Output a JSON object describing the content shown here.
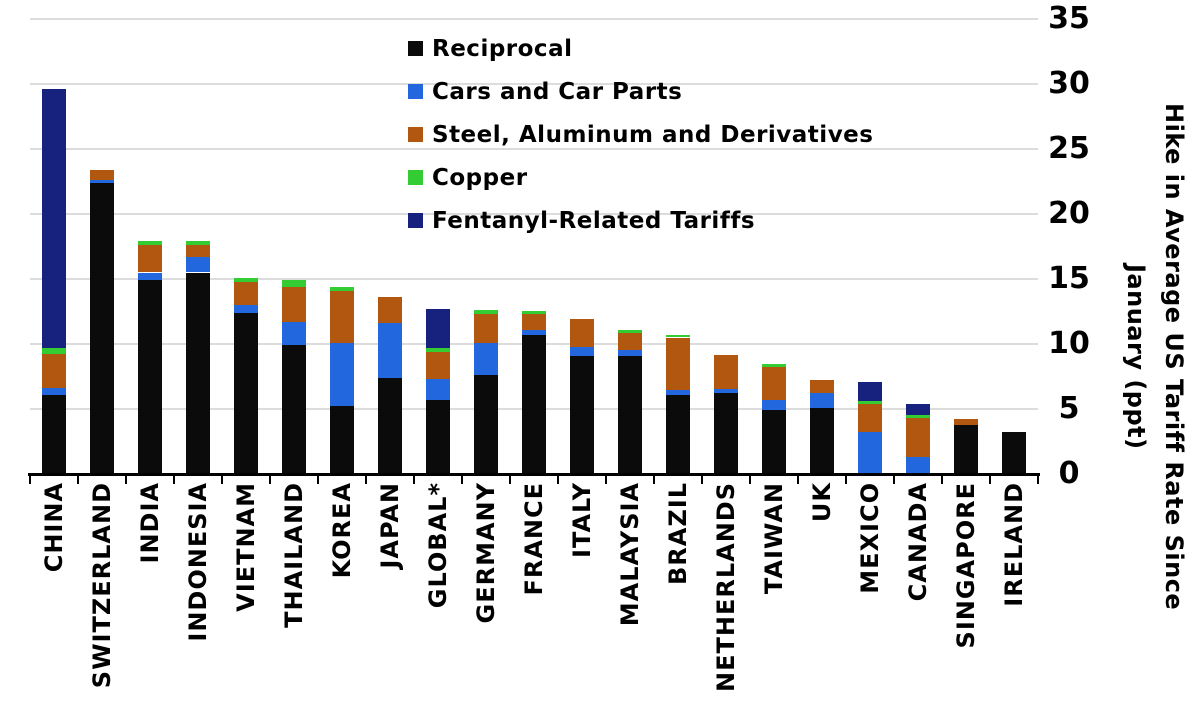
{
  "chart_data": {
    "type": "stacked_bar",
    "title": "",
    "ylabel": "Hike in Average US Tariff Rate Since January (ppt)",
    "ylabel_lines": [
      "Hike in Average US Tariff Rate Since",
      "January (ppt)"
    ],
    "ylim": [
      0,
      35
    ],
    "yticks": [
      0,
      5,
      10,
      15,
      20,
      25,
      30,
      35
    ],
    "grid": true,
    "legend_position": "upper-center-inside",
    "categories": [
      "CHINA",
      "SWITZERLAND",
      "INDIA",
      "INDONESIA",
      "VIETNAM",
      "THAILAND",
      "KOREA",
      "JAPAN",
      "GLOBAL*",
      "GERMANY",
      "FRANCE",
      "ITALY",
      "MALAYSIA",
      "BRAZIL",
      "NETHERLANDS",
      "TAIWAN",
      "UK",
      "MEXICO",
      "CANADA",
      "SINGAPORE",
      "IRELAND"
    ],
    "series": [
      {
        "name": "Reciprocal",
        "color": "#0b0b0b",
        "values": [
          6.1,
          22.4,
          14.9,
          15.5,
          12.4,
          9.9,
          5.2,
          7.4,
          5.7,
          7.6,
          10.7,
          9.1,
          9.1,
          6.1,
          6.2,
          4.9,
          5.1,
          0,
          0,
          3.8,
          3.2
        ]
      },
      {
        "name": "Cars and Car Parts",
        "color": "#2367de",
        "values": [
          0.5,
          0.2,
          0.6,
          1.2,
          0.6,
          1.8,
          4.9,
          4.2,
          1.6,
          2.5,
          0.4,
          0.7,
          0.45,
          0.4,
          0.35,
          0.8,
          1.1,
          3.2,
          1.3,
          0,
          0
        ]
      },
      {
        "name": "Steel, Aluminum and Derivatives",
        "color": "#b1570f",
        "values": [
          2.6,
          0.8,
          2.1,
          0.9,
          1.8,
          2.7,
          4.0,
          2.0,
          2.1,
          2.2,
          1.2,
          2.1,
          1.3,
          4.0,
          2.6,
          2.5,
          1.0,
          2.2,
          3.0,
          0.4,
          0
        ]
      },
      {
        "name": "Copper",
        "color": "#33cc33",
        "values": [
          0.5,
          0,
          0.3,
          0.3,
          0.3,
          0.5,
          0.3,
          0,
          0.3,
          0.3,
          0.25,
          0,
          0.25,
          0.2,
          0,
          0.25,
          0,
          0.2,
          0.25,
          0,
          0
        ]
      },
      {
        "name": "Fentanyl-Related Tariffs",
        "color": "#17227e",
        "values": [
          19.9,
          0,
          0,
          0,
          0,
          0,
          0,
          0,
          3.0,
          0,
          0,
          0,
          0,
          0,
          0,
          0,
          0,
          1.45,
          0.85,
          0,
          0
        ]
      }
    ],
    "totals": [
      29.6,
      23.4,
      17.9,
      17.9,
      15.1,
      14.9,
      14.4,
      13.6,
      12.7,
      12.6,
      12.55,
      11.9,
      11.1,
      10.7,
      9.15,
      8.45,
      7.2,
      7.05,
      5.4,
      4.2,
      3.2
    ]
  }
}
